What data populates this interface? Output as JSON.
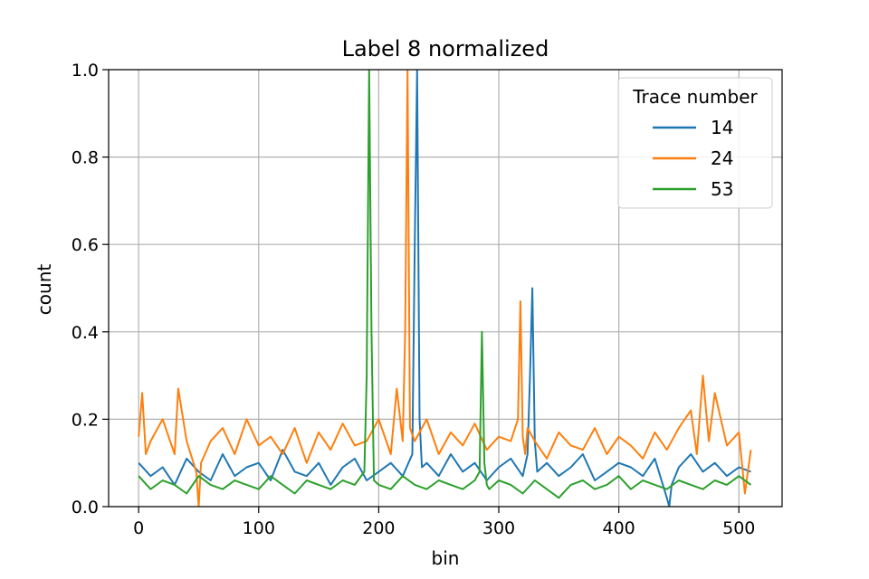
{
  "chart_data": {
    "type": "line",
    "title": "Label 8 normalized",
    "xlabel": "bin",
    "ylabel": "count",
    "xlim": [
      -25,
      536
    ],
    "ylim": [
      0,
      1.0
    ],
    "xticks": [
      0,
      100,
      200,
      300,
      400,
      500
    ],
    "yticks": [
      0.0,
      0.2,
      0.4,
      0.6,
      0.8,
      1.0
    ],
    "xtick_labels": [
      "0",
      "100",
      "200",
      "300",
      "400",
      "500"
    ],
    "ytick_labels": [
      "0.0",
      "0.2",
      "0.4",
      "0.6",
      "0.8",
      "1.0"
    ],
    "grid": true,
    "legend": {
      "title": "Trace number",
      "placement": "top-right"
    },
    "series": [
      {
        "name": "14",
        "color": "#1f77b4",
        "x": [
          0,
          10,
          20,
          30,
          40,
          50,
          60,
          70,
          80,
          90,
          100,
          110,
          120,
          130,
          140,
          150,
          160,
          170,
          180,
          190,
          200,
          210,
          220,
          228,
          230,
          232,
          234,
          236,
          240,
          250,
          260,
          270,
          280,
          290,
          300,
          310,
          320,
          324,
          326,
          328,
          330,
          332,
          340,
          350,
          360,
          370,
          380,
          390,
          400,
          410,
          420,
          430,
          440,
          442,
          444,
          450,
          460,
          470,
          480,
          490,
          500,
          510
        ],
        "values": [
          0.1,
          0.07,
          0.09,
          0.05,
          0.11,
          0.08,
          0.06,
          0.12,
          0.07,
          0.09,
          0.1,
          0.06,
          0.13,
          0.08,
          0.07,
          0.1,
          0.05,
          0.09,
          0.11,
          0.06,
          0.08,
          0.1,
          0.07,
          0.12,
          0.6,
          1.0,
          0.2,
          0.09,
          0.1,
          0.07,
          0.12,
          0.08,
          0.1,
          0.06,
          0.09,
          0.11,
          0.07,
          0.12,
          0.3,
          0.5,
          0.15,
          0.08,
          0.1,
          0.07,
          0.09,
          0.12,
          0.06,
          0.08,
          0.1,
          0.09,
          0.07,
          0.11,
          0.02,
          0.0,
          0.05,
          0.09,
          0.12,
          0.08,
          0.1,
          0.07,
          0.09,
          0.08
        ]
      },
      {
        "name": "24",
        "color": "#ff7f0e",
        "x": [
          0,
          3,
          6,
          10,
          20,
          30,
          33,
          40,
          48,
          50,
          52,
          60,
          70,
          80,
          90,
          100,
          110,
          120,
          130,
          140,
          150,
          160,
          170,
          180,
          190,
          200,
          210,
          215,
          220,
          222,
          224,
          226,
          230,
          240,
          250,
          260,
          270,
          280,
          290,
          300,
          310,
          316,
          318,
          320,
          322,
          324,
          330,
          340,
          350,
          360,
          370,
          380,
          390,
          400,
          410,
          420,
          430,
          440,
          450,
          460,
          465,
          470,
          475,
          480,
          490,
          500,
          505,
          510
        ],
        "values": [
          0.16,
          0.26,
          0.12,
          0.15,
          0.2,
          0.12,
          0.27,
          0.15,
          0.08,
          0.0,
          0.1,
          0.15,
          0.18,
          0.12,
          0.2,
          0.14,
          0.16,
          0.12,
          0.18,
          0.1,
          0.17,
          0.13,
          0.19,
          0.14,
          0.15,
          0.2,
          0.12,
          0.27,
          0.15,
          0.4,
          1.0,
          0.18,
          0.15,
          0.2,
          0.12,
          0.17,
          0.14,
          0.19,
          0.13,
          0.16,
          0.15,
          0.2,
          0.47,
          0.16,
          0.12,
          0.18,
          0.15,
          0.11,
          0.17,
          0.14,
          0.13,
          0.18,
          0.12,
          0.16,
          0.14,
          0.11,
          0.17,
          0.13,
          0.18,
          0.22,
          0.12,
          0.3,
          0.15,
          0.26,
          0.14,
          0.17,
          0.03,
          0.13
        ]
      },
      {
        "name": "53",
        "color": "#2ca02c",
        "x": [
          0,
          10,
          20,
          30,
          40,
          50,
          60,
          70,
          80,
          90,
          100,
          110,
          120,
          130,
          140,
          150,
          160,
          170,
          180,
          188,
          190,
          192,
          194,
          196,
          200,
          210,
          220,
          230,
          240,
          250,
          260,
          270,
          280,
          284,
          286,
          288,
          290,
          292,
          300,
          310,
          320,
          330,
          340,
          350,
          360,
          370,
          380,
          390,
          400,
          410,
          420,
          430,
          440,
          450,
          460,
          470,
          480,
          490,
          500,
          510
        ],
        "values": [
          0.07,
          0.04,
          0.06,
          0.05,
          0.03,
          0.07,
          0.05,
          0.04,
          0.06,
          0.05,
          0.04,
          0.07,
          0.05,
          0.03,
          0.06,
          0.05,
          0.04,
          0.06,
          0.05,
          0.08,
          0.3,
          1.0,
          0.4,
          0.06,
          0.05,
          0.04,
          0.07,
          0.05,
          0.04,
          0.06,
          0.05,
          0.04,
          0.06,
          0.08,
          0.4,
          0.1,
          0.05,
          0.04,
          0.06,
          0.05,
          0.03,
          0.06,
          0.04,
          0.02,
          0.05,
          0.06,
          0.04,
          0.05,
          0.07,
          0.04,
          0.06,
          0.05,
          0.04,
          0.06,
          0.05,
          0.04,
          0.06,
          0.05,
          0.07,
          0.05
        ]
      }
    ]
  }
}
